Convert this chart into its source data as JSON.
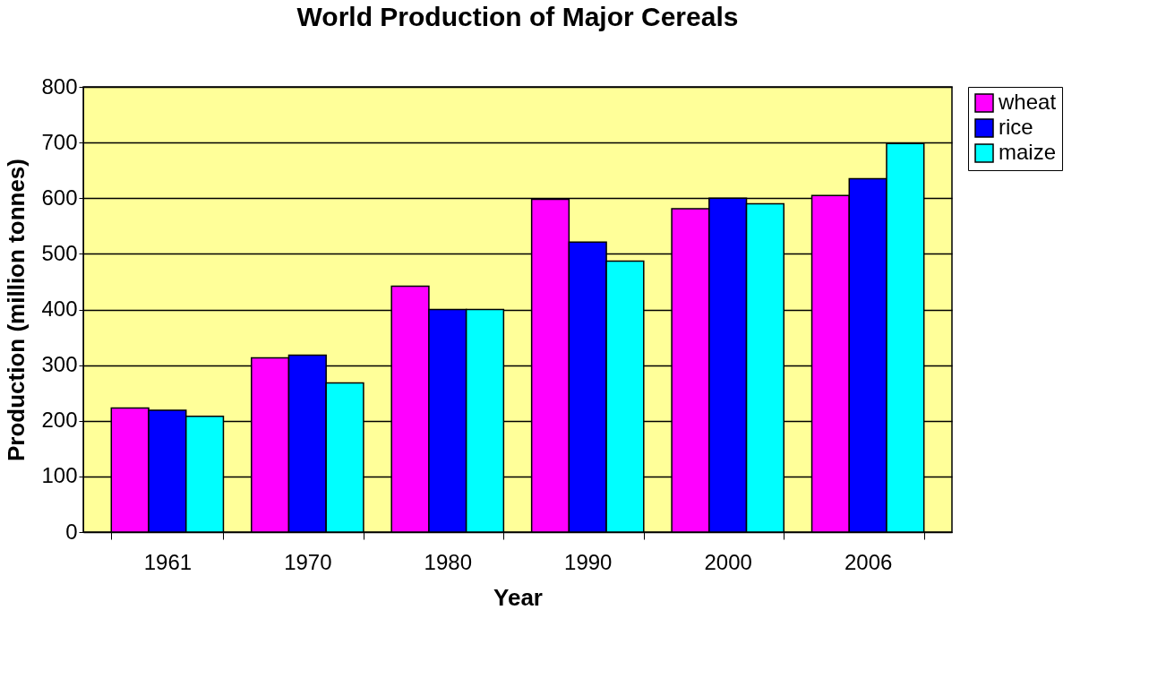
{
  "chart_data": {
    "type": "bar",
    "title": "World Production of Major Cereals",
    "xlabel": "Year",
    "ylabel": "Production (million tonnes)",
    "categories": [
      "1961",
      "1970",
      "1980",
      "1990",
      "2000",
      "2006"
    ],
    "series": [
      {
        "name": "wheat",
        "color": "#ff00ff",
        "values": [
          223,
          313,
          442,
          598,
          581,
          605
        ]
      },
      {
        "name": "rice",
        "color": "#0000ff",
        "values": [
          219,
          318,
          400,
          521,
          600,
          635
        ]
      },
      {
        "name": "maize",
        "color": "#00ffff",
        "values": [
          208,
          268,
          400,
          487,
          590,
          698
        ]
      }
    ],
    "ylim": [
      0,
      800
    ],
    "yticks": [
      0,
      100,
      200,
      300,
      400,
      500,
      600,
      700,
      800
    ],
    "grid": "y",
    "legend": "right"
  }
}
